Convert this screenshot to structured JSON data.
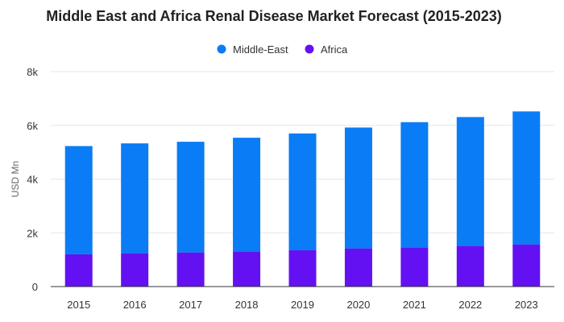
{
  "chart_data": {
    "type": "bar",
    "stacked": true,
    "title": "Middle East and Africa Renal Disease Market Forecast (2015-2023)",
    "xlabel": "",
    "ylabel": "USD Mn",
    "categories": [
      "2015",
      "2016",
      "2017",
      "2018",
      "2019",
      "2020",
      "2021",
      "2022",
      "2023"
    ],
    "ylim": [
      0,
      8000
    ],
    "yticks": [
      0,
      2000,
      4000,
      6000,
      8000
    ],
    "ytick_labels": [
      "0",
      "2k",
      "4k",
      "6k",
      "8k"
    ],
    "grid": true,
    "legend_position": "top-center",
    "series": [
      {
        "name": "Africa",
        "color": "#6311f2",
        "values": [
          1200,
          1240,
          1270,
          1310,
          1360,
          1420,
          1460,
          1520,
          1570
        ]
      },
      {
        "name": "Middle-East",
        "color": "#0a7cf5",
        "values": [
          4030,
          4090,
          4120,
          4230,
          4340,
          4500,
          4660,
          4790,
          4950
        ]
      }
    ],
    "legend_order": [
      "Middle-East",
      "Africa"
    ]
  }
}
